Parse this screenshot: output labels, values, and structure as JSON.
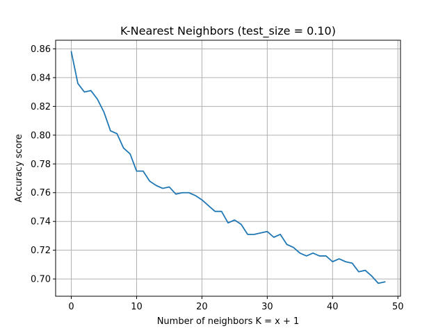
{
  "chart_data": {
    "type": "line",
    "title": "K-Nearest Neighbors (test_size = 0.10)",
    "xlabel": "Number of neighbors K = x + 1",
    "ylabel": "Accuracy score",
    "xlim": [
      -2.4,
      50.4
    ],
    "ylim": [
      0.688,
      0.866
    ],
    "xticks": [
      0,
      10,
      20,
      30,
      40,
      50
    ],
    "yticks": [
      0.7,
      0.72,
      0.74,
      0.76,
      0.78,
      0.8,
      0.82,
      0.84,
      0.86
    ],
    "xtick_labels": [
      "0",
      "10",
      "20",
      "30",
      "40",
      "50"
    ],
    "ytick_labels": [
      "0.70",
      "0.72",
      "0.74",
      "0.76",
      "0.78",
      "0.80",
      "0.82",
      "0.84",
      "0.86"
    ],
    "grid": true,
    "series": [
      {
        "color": "#1f77b4",
        "x": [
          0,
          1,
          2,
          3,
          4,
          5,
          6,
          7,
          8,
          9,
          10,
          11,
          12,
          13,
          14,
          15,
          16,
          17,
          18,
          19,
          20,
          21,
          22,
          23,
          24,
          25,
          26,
          27,
          28,
          29,
          30,
          31,
          32,
          33,
          34,
          35,
          36,
          37,
          38,
          39,
          40,
          41,
          42,
          43,
          44,
          45,
          46,
          47,
          48
        ],
        "y": [
          0.858,
          0.836,
          0.83,
          0.831,
          0.825,
          0.816,
          0.803,
          0.801,
          0.791,
          0.787,
          0.775,
          0.775,
          0.768,
          0.765,
          0.763,
          0.764,
          0.759,
          0.76,
          0.76,
          0.758,
          0.755,
          0.751,
          0.747,
          0.747,
          0.739,
          0.741,
          0.738,
          0.731,
          0.731,
          0.732,
          0.733,
          0.729,
          0.731,
          0.724,
          0.722,
          0.718,
          0.716,
          0.718,
          0.716,
          0.716,
          0.712,
          0.714,
          0.712,
          0.711,
          0.705,
          0.706,
          0.702,
          0.697,
          0.698
        ]
      }
    ]
  }
}
